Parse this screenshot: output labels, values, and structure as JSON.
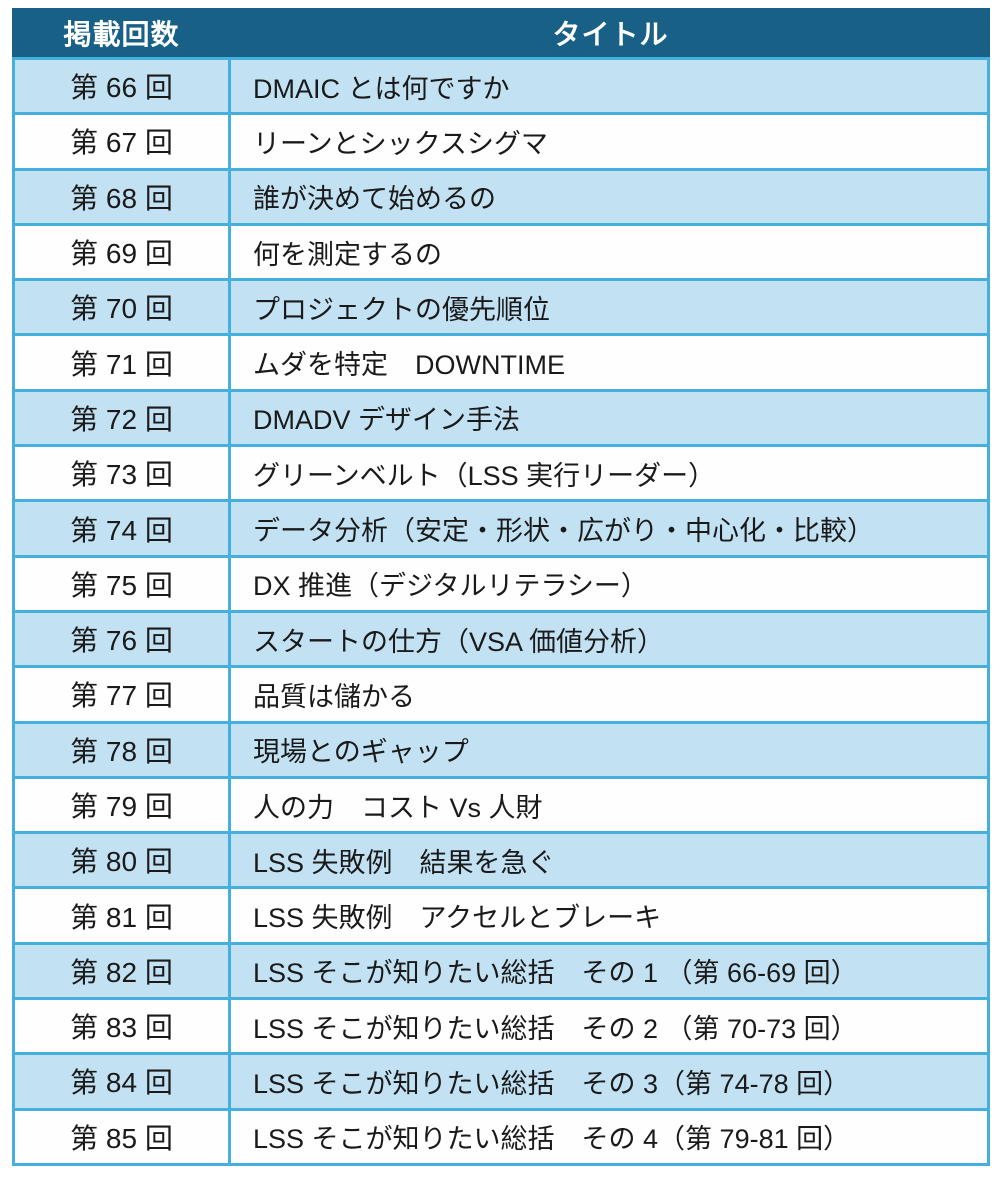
{
  "table": {
    "headers": {
      "episode": "掲載回数",
      "title": "タイトル"
    },
    "rows": [
      {
        "episode": "第 66 回",
        "title": "DMAIC とは何ですか"
      },
      {
        "episode": "第 67 回",
        "title": "リーンとシックスシグマ"
      },
      {
        "episode": "第 68 回",
        "title": "誰が決めて始めるの"
      },
      {
        "episode": "第 69 回",
        "title": "何を測定するの"
      },
      {
        "episode": "第 70 回",
        "title": "プロジェクトの優先順位"
      },
      {
        "episode": "第 71 回",
        "title": "ムダを特定　DOWNTIME"
      },
      {
        "episode": "第 72 回",
        "title": "DMADV デザイン手法"
      },
      {
        "episode": "第 73 回",
        "title": "グリーンベルト（LSS 実行リーダー）"
      },
      {
        "episode": "第 74 回",
        "title": "データ分析（安定・形状・広がり・中心化・比較）"
      },
      {
        "episode": "第 75 回",
        "title": "DX 推進（デジタルリテラシー）"
      },
      {
        "episode": "第 76 回",
        "title": "スタートの仕方（VSA 価値分析）"
      },
      {
        "episode": "第 77 回",
        "title": "品質は儲かる"
      },
      {
        "episode": "第 78 回",
        "title": "現場とのギャップ"
      },
      {
        "episode": "第 79 回",
        "title": "人の力　コスト Vs 人財"
      },
      {
        "episode": "第 80 回",
        "title": "LSS 失敗例　結果を急ぐ"
      },
      {
        "episode": "第 81 回",
        "title": "LSS 失敗例　アクセルとブレーキ"
      },
      {
        "episode": "第 82 回",
        "title": "LSS そこが知りたい総括　その 1 （第 66-69 回）"
      },
      {
        "episode": "第 83 回",
        "title": "LSS そこが知りたい総括　その 2 （第 70-73 回）"
      },
      {
        "episode": "第 84 回",
        "title": "LSS そこが知りたい総括　その 3（第 74-78 回）"
      },
      {
        "episode": "第 85 回",
        "title": "LSS そこが知りたい総括　その 4（第 79-81 回）"
      }
    ]
  },
  "colors": {
    "header_bg": "#186086",
    "header_text": "#ffffff",
    "row_alt": "#C2E2F4",
    "row_plain": "#fefefe",
    "border": "#45AFDD",
    "body_text": "#1a1a1a"
  }
}
